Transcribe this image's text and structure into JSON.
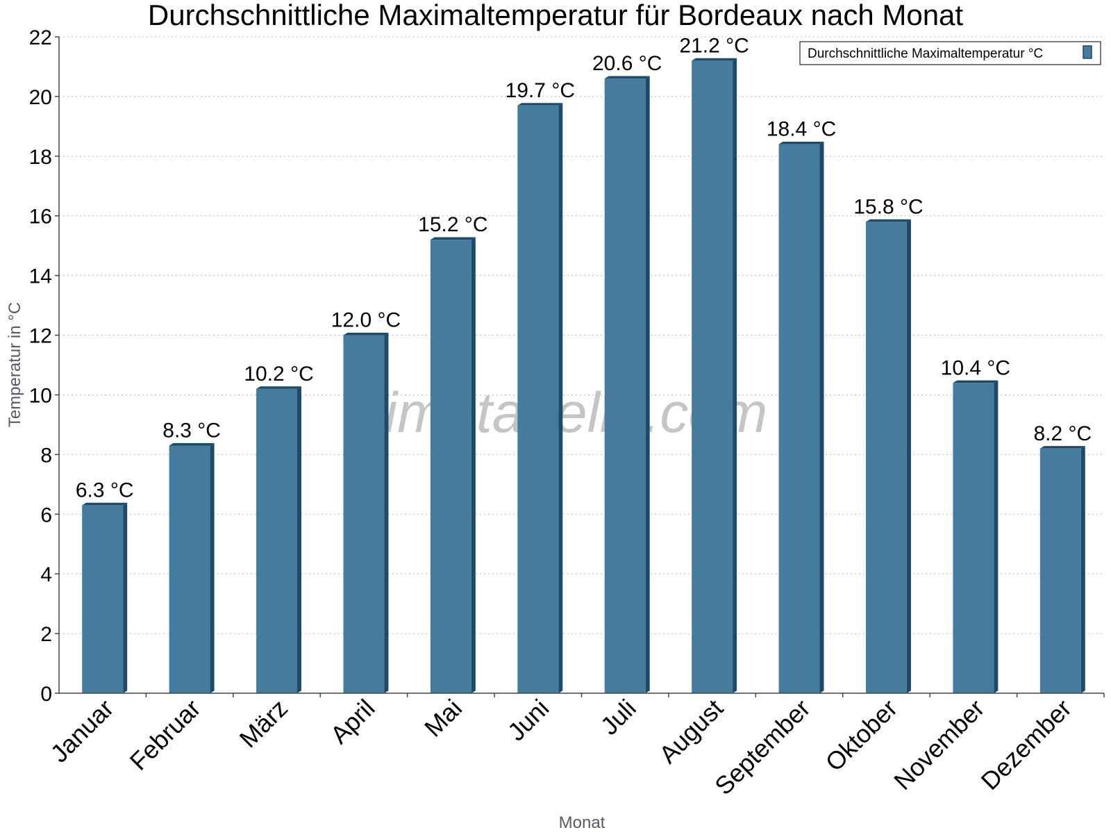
{
  "chart_data": {
    "type": "bar",
    "title": "Durchschnittliche Maximaltemperatur für Bordeaux nach Monat",
    "xlabel": "Monat",
    "ylabel": "Temperatur in °C",
    "categories": [
      "Januar",
      "Februar",
      "März",
      "April",
      "Mai",
      "Juni",
      "Juli",
      "August",
      "September",
      "Oktober",
      "November",
      "Dezember"
    ],
    "series": [
      {
        "name": "Durchschnittliche Maximaltemperatur °C",
        "values": [
          6.3,
          8.3,
          10.2,
          12.0,
          15.2,
          19.7,
          20.6,
          21.2,
          18.4,
          15.8,
          10.4,
          8.2
        ],
        "labels": [
          "6.3 °C",
          "8.3 °C",
          "10.2 °C",
          "12.0 °C",
          "15.2 °C",
          "19.7 °C",
          "20.6 °C",
          "21.2 °C",
          "18.4 °C",
          "15.8 °C",
          "10.4 °C",
          "8.2 °C"
        ]
      }
    ],
    "ylim": [
      0,
      22
    ],
    "yticks": [
      0,
      2,
      4,
      6,
      8,
      10,
      12,
      14,
      16,
      18,
      20,
      22
    ],
    "grid": true,
    "legend_position": "top-right",
    "watermark": "klimatabelle.com",
    "colors": {
      "bar_face": "#457b9d",
      "bar_side": "#1d4a6b",
      "bar_top": "#1d4a6b",
      "grid": "#bbbbbb",
      "axis": "#444444",
      "title": "#000000",
      "axis_label": "#555a66",
      "watermark": "#bbbbbb"
    }
  }
}
